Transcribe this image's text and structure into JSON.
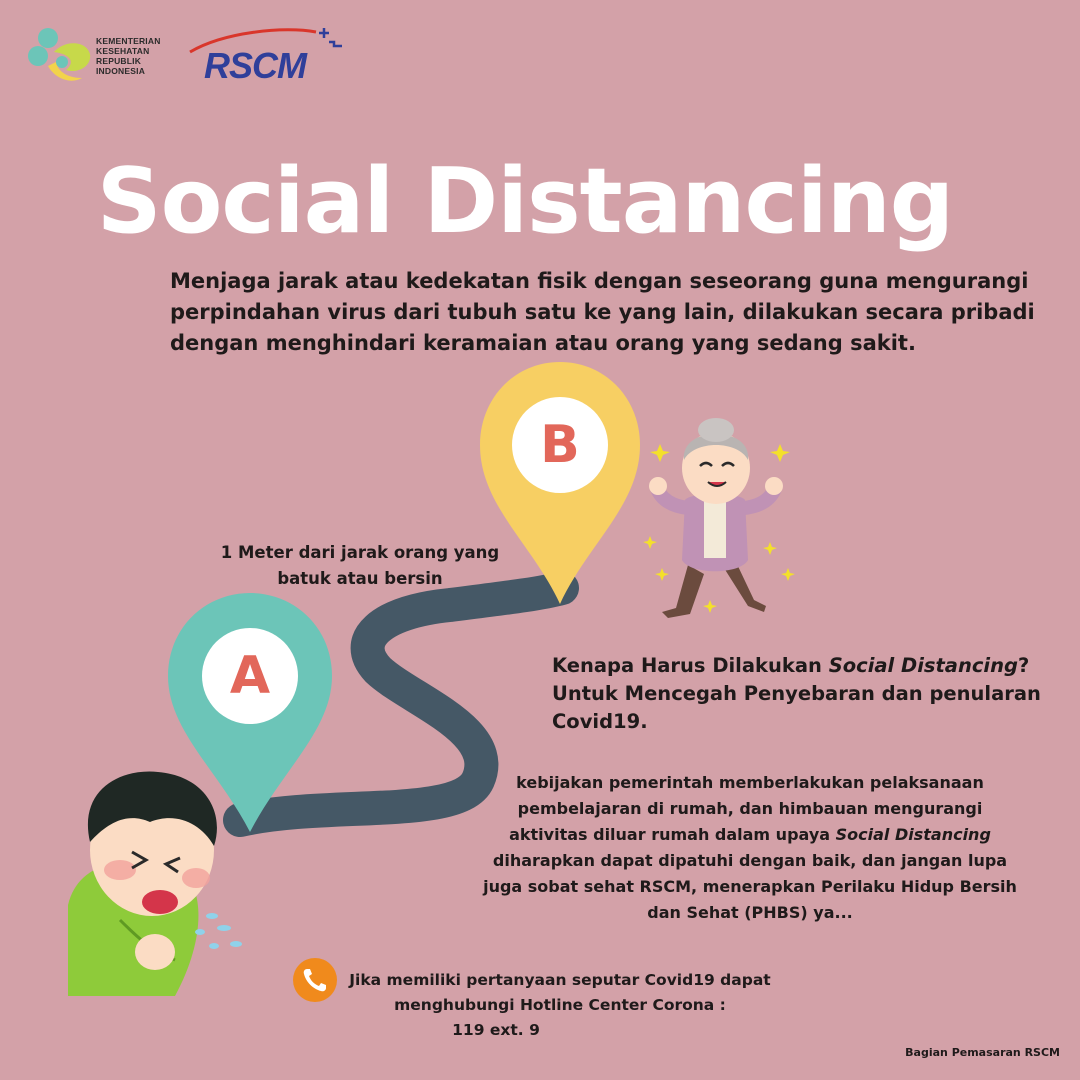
{
  "logos": {
    "kemenkes_lines": [
      "KEMENTERIAN",
      "KESEHATAN",
      "REPUBLIK",
      "INDONESIA"
    ],
    "rscm_word": "RSCM"
  },
  "title": "Social Distancing",
  "subtitle_lines": [
    "Menjaga jarak atau kedekatan fisik dengan seseorang guna mengurangi",
    "perpindahan virus dari tubuh satu ke yang lain, dilakukan secara pribadi",
    "dengan menghindari keramaian atau orang yang sedang sakit."
  ],
  "markers": {
    "a_letter": "A",
    "b_letter": "B"
  },
  "distance_label_lines": [
    "1 Meter dari jarak orang yang",
    "batuk atau bersin"
  ],
  "why": {
    "line1_prefix": "Kenapa Harus Dilakukan ",
    "line1_emph": "Social Distancing",
    "line1_suffix": "?",
    "line2": "Untuk Mencegah Penyebaran dan penularan",
    "line3": "Covid19."
  },
  "policy": {
    "line1": "kebijakan pemerintah memberlakukan pelaksanaan",
    "line2": "pembelajaran di rumah, dan himbauan mengurangi",
    "line3_prefix": "aktivitas diluar rumah dalam upaya ",
    "line3_emph": "Social Distancing",
    "line4": "diharapkan dapat dipatuhi dengan baik, dan jangan lupa",
    "line5": "juga sobat sehat RSCM, menerapkan Perilaku Hidup Bersih",
    "line6": "dan Sehat (PHBS) ya..."
  },
  "hotline": {
    "line1": "Jika memiliki pertanyaan seputar Covid19 dapat",
    "line2": "menghubungi Hotline Center Corona :",
    "line3": "119 ext. 9"
  },
  "credit": "Bagian Pemasaran RSCM",
  "colors": {
    "background": "#d3a1a8",
    "marker_a": "#6cc5b8",
    "marker_b": "#f7cf63",
    "marker_letter": "#e2675a",
    "road": "#455866",
    "phone_icon": "#f08a1c",
    "rscm_blue": "#2f3f9a",
    "rscm_red": "#d9362b"
  },
  "icons": [
    "kemenkes-logo-icon",
    "rscm-logo-icon",
    "marker-a-icon",
    "marker-b-icon",
    "phone-icon",
    "coughing-boy-illustration",
    "happy-grandmother-illustration"
  ]
}
